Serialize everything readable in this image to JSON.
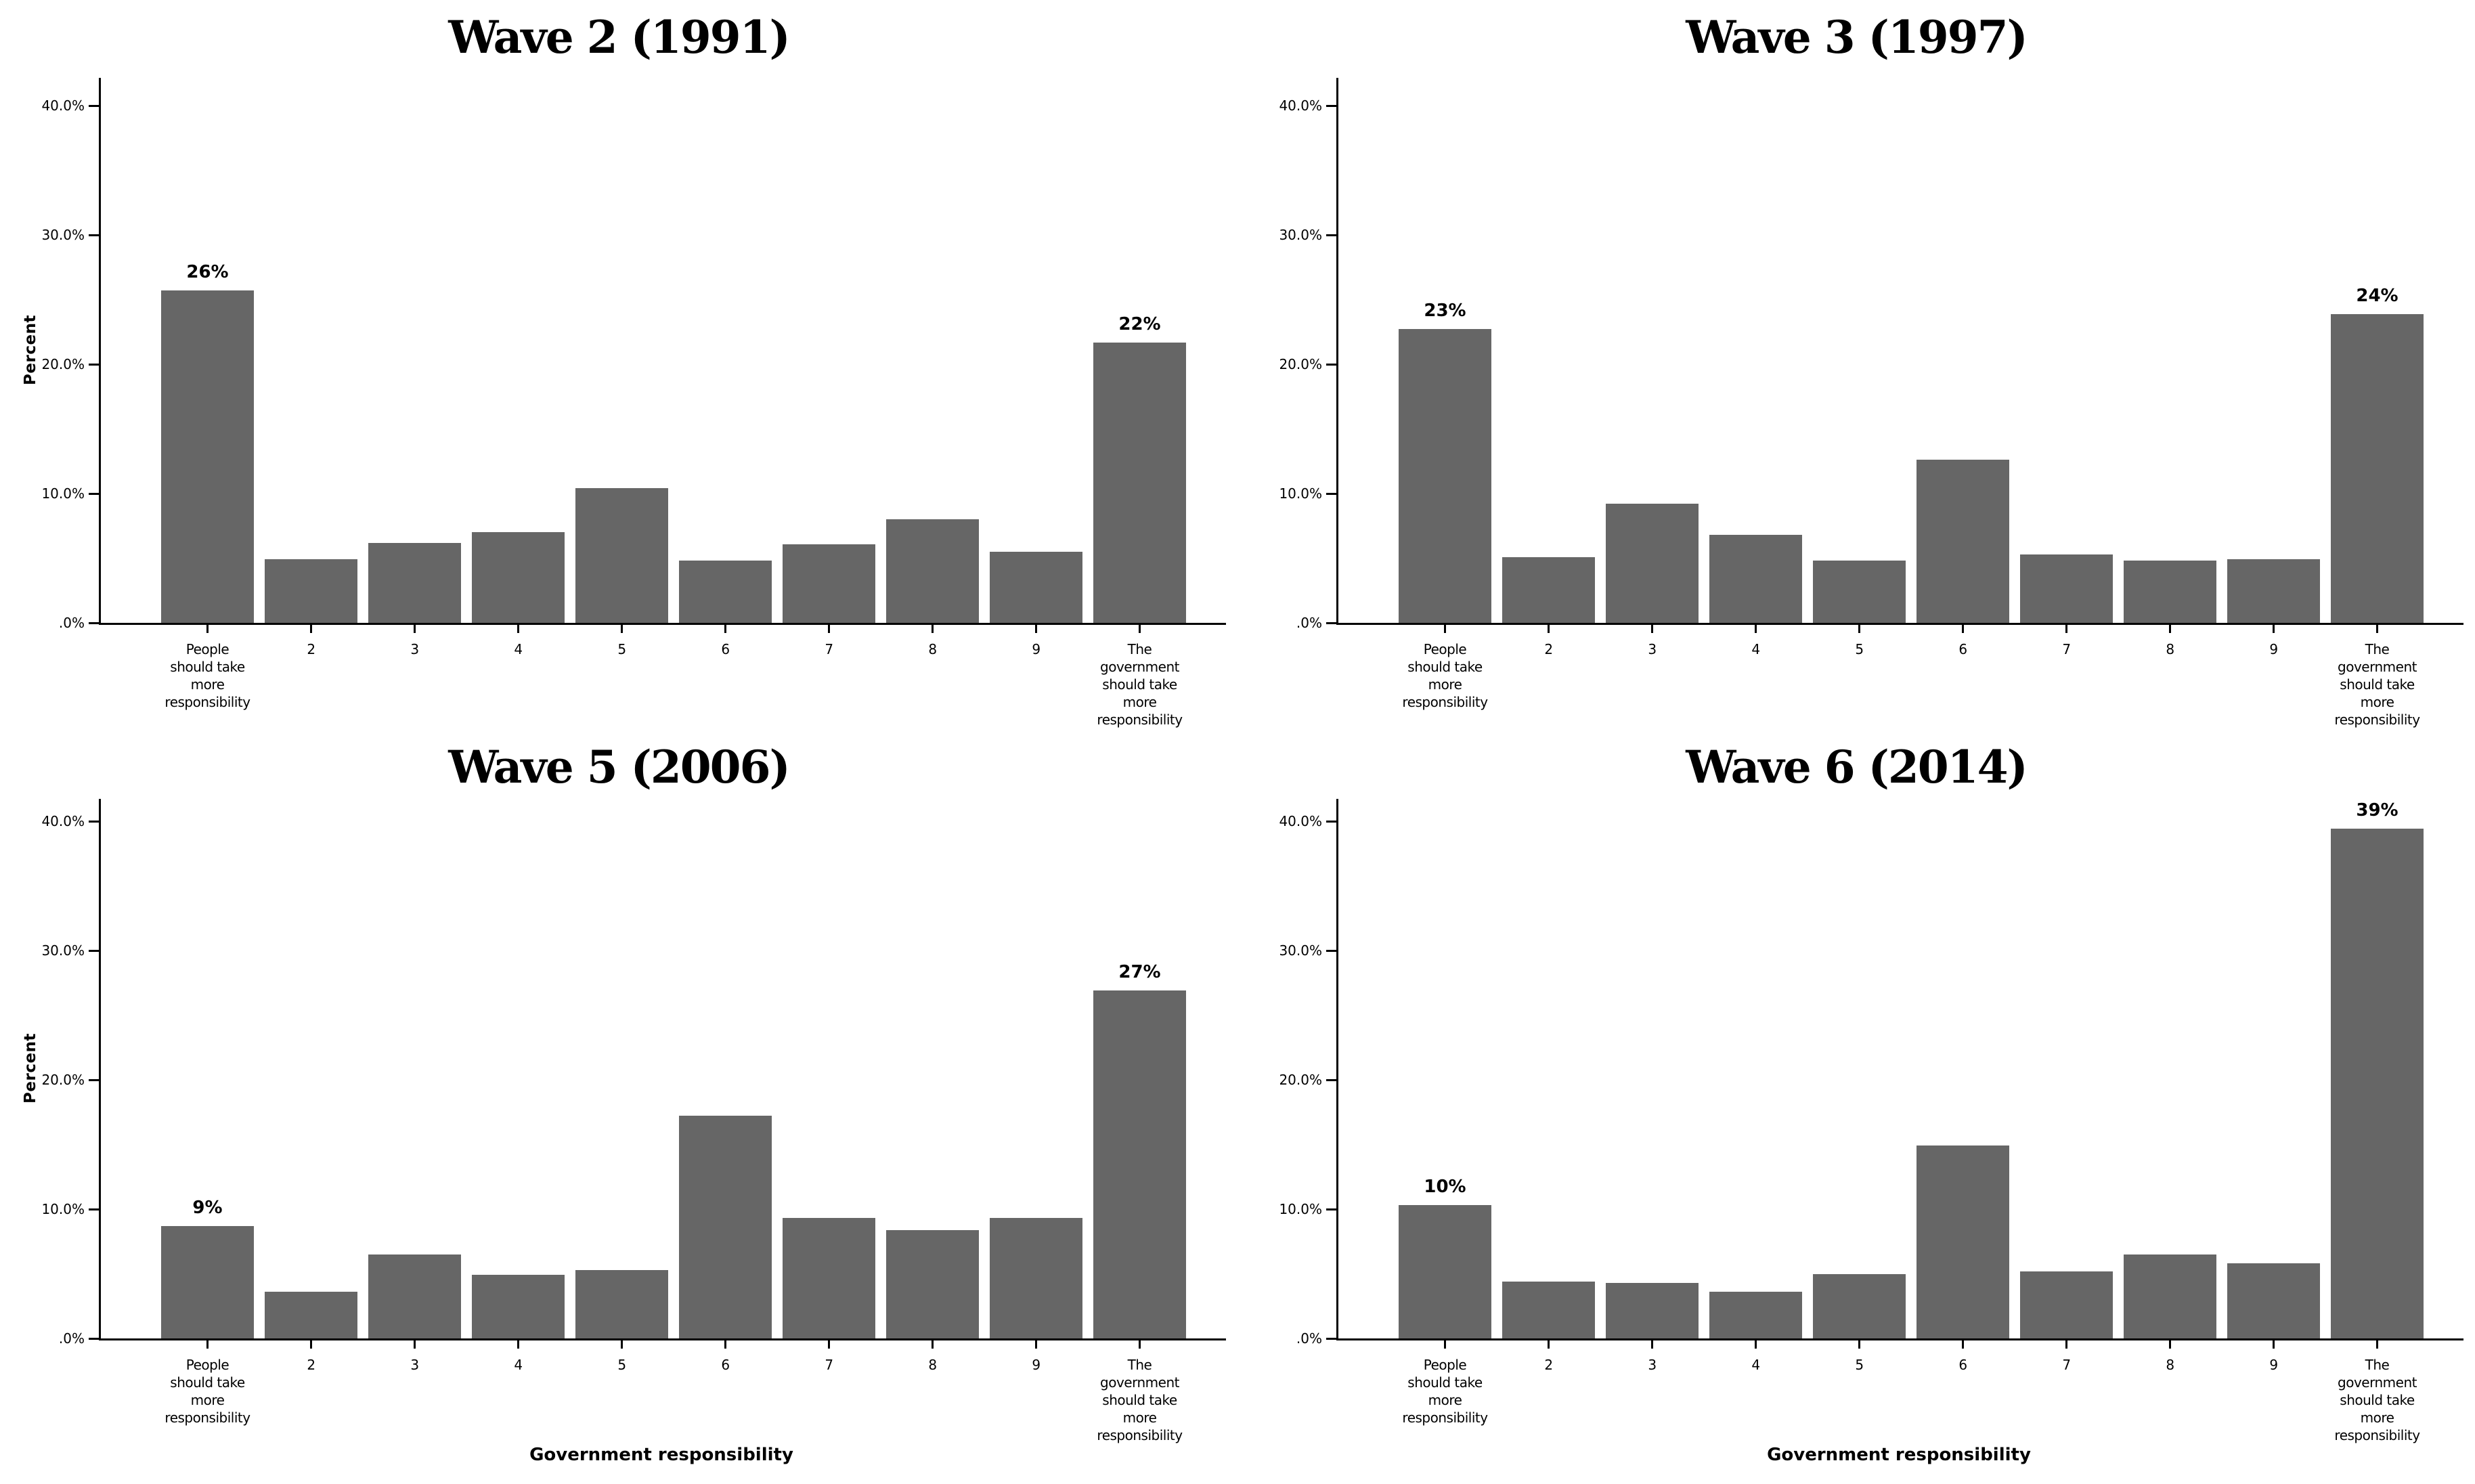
{
  "figure": {
    "background": "#ffffff",
    "bar_color": "#666666",
    "axis_color": "#000000",
    "text_color": "#000000"
  },
  "shared": {
    "ylabel": "Percent",
    "xlabel": "Government responsibility",
    "y_ticks": [
      {
        "value": 0,
        "label": ".0%"
      },
      {
        "value": 10,
        "label": "10.0%"
      },
      {
        "value": 20,
        "label": "20.0%"
      },
      {
        "value": 30,
        "label": "30.0%"
      },
      {
        "value": 40,
        "label": "40.0%"
      }
    ],
    "category_display_lines": [
      [
        "People",
        "should take",
        "more",
        "responsibility"
      ],
      [
        "2"
      ],
      [
        "3"
      ],
      [
        "4"
      ],
      [
        "5"
      ],
      [
        "6"
      ],
      [
        "7"
      ],
      [
        "8"
      ],
      [
        "9"
      ],
      [
        "The",
        "government",
        "should take",
        "more",
        "responsibility"
      ]
    ]
  },
  "chart_data": [
    {
      "type": "bar",
      "title": "Wave 2 (1991)",
      "categories": [
        "People should take more responsibility",
        "2",
        "3",
        "4",
        "5",
        "6",
        "7",
        "8",
        "9",
        "The government should take more responsibility"
      ],
      "values": [
        25.7,
        4.9,
        6.2,
        7.0,
        10.4,
        4.8,
        6.1,
        8.0,
        5.5,
        21.7
      ],
      "bar_labels": [
        "26%",
        "",
        "",
        "",
        "",
        "",
        "",
        "",
        "",
        "22%"
      ],
      "ylabel": "Percent",
      "xlabel": "",
      "ylim": [
        0,
        40
      ],
      "grid": false,
      "legend": false
    },
    {
      "type": "bar",
      "title": "Wave 3 (1997)",
      "categories": [
        "People should take more responsibility",
        "2",
        "3",
        "4",
        "5",
        "6",
        "7",
        "8",
        "9",
        "The government should take more responsibility"
      ],
      "values": [
        22.7,
        5.1,
        9.2,
        6.8,
        4.8,
        12.6,
        5.3,
        4.8,
        4.9,
        23.9
      ],
      "bar_labels": [
        "23%",
        "",
        "",
        "",
        "",
        "",
        "",
        "",
        "",
        "24%"
      ],
      "ylabel": "",
      "xlabel": "",
      "ylim": [
        0,
        40
      ],
      "grid": false,
      "legend": false
    },
    {
      "type": "bar",
      "title": "Wave 5 (2006)",
      "categories": [
        "People should take more responsibility",
        "2",
        "3",
        "4",
        "5",
        "6",
        "7",
        "8",
        "9",
        "The government should take more responsibility"
      ],
      "values": [
        8.7,
        3.6,
        6.5,
        4.9,
        5.3,
        17.2,
        9.3,
        8.4,
        9.3,
        26.9
      ],
      "bar_labels": [
        "9%",
        "",
        "",
        "",
        "",
        "",
        "",
        "",
        "",
        "27%"
      ],
      "ylabel": "Percent",
      "xlabel": "Government responsibility",
      "ylim": [
        0,
        40
      ],
      "grid": false,
      "legend": false
    },
    {
      "type": "bar",
      "title": "Wave 6 (2014)",
      "categories": [
        "People should take more responsibility",
        "2",
        "3",
        "4",
        "5",
        "6",
        "7",
        "8",
        "9",
        "The government should take more responsibility"
      ],
      "values": [
        10.3,
        4.4,
        4.3,
        3.6,
        5.0,
        14.9,
        5.2,
        6.5,
        5.8,
        39.4
      ],
      "bar_labels": [
        "10%",
        "",
        "",
        "",
        "",
        "",
        "",
        "",
        "",
        "39%"
      ],
      "ylabel": "",
      "xlabel": "Government responsibility",
      "ylim": [
        0,
        40
      ],
      "grid": false,
      "legend": false
    }
  ]
}
